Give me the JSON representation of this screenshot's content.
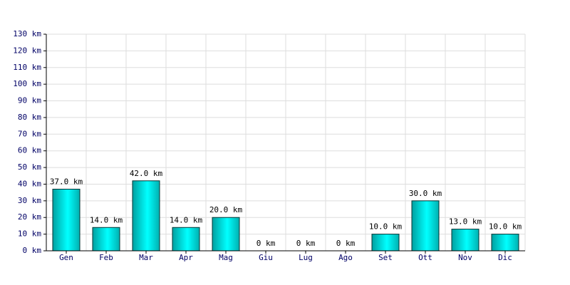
{
  "chart_data": {
    "type": "bar",
    "categories": [
      "Gen",
      "Feb",
      "Mar",
      "Apr",
      "Mag",
      "Giu",
      "Lug",
      "Ago",
      "Set",
      "Ott",
      "Nov",
      "Dic"
    ],
    "values": [
      37,
      14,
      42,
      14,
      20,
      0,
      0,
      0,
      10,
      30,
      13,
      10
    ],
    "value_labels": [
      "37.0 km",
      "14.0 km",
      "42.0 km",
      "14.0 km",
      "20.0 km",
      "0 km",
      "0 km",
      "0 km",
      "10.0 km",
      "30.0 km",
      "13.0 km",
      "10.0 km"
    ],
    "color": "#00e5e5",
    "ylim": [
      0,
      130
    ],
    "yticks": [
      {
        "value": 0,
        "label": "0 km"
      },
      {
        "value": 10,
        "label": "10 km"
      },
      {
        "value": 20,
        "label": "20 km"
      },
      {
        "value": 30,
        "label": "30 km"
      },
      {
        "value": 40,
        "label": "40 km"
      },
      {
        "value": 50,
        "label": "50 km"
      },
      {
        "value": 60,
        "label": "60 km"
      },
      {
        "value": 70,
        "label": "70 km"
      },
      {
        "value": 80,
        "label": "80 km"
      },
      {
        "value": 90,
        "label": "90 km"
      },
      {
        "value": 100,
        "label": "100 km"
      },
      {
        "value": 110,
        "label": "110 km"
      },
      {
        "value": 120,
        "label": "120 km"
      },
      {
        "value": 130,
        "label": "130 km"
      }
    ],
    "grid": true
  }
}
